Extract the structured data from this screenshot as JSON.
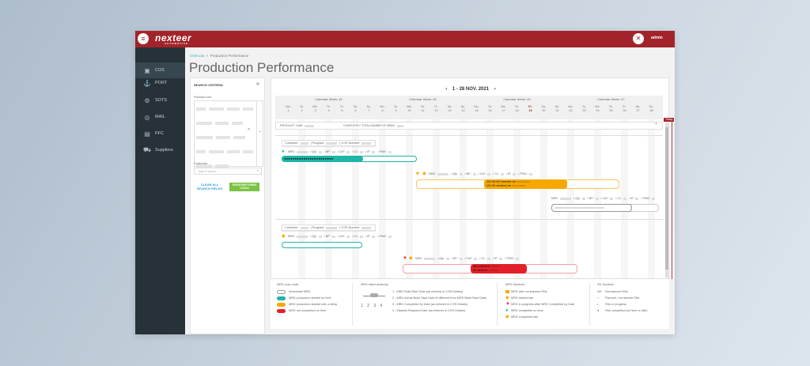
{
  "header": {
    "logo": "nexteer",
    "logo_sub": "AUTOMOTIVE",
    "user": "admin",
    "brand_color": "#a3232a"
  },
  "sidebar": {
    "items": [
      {
        "label": "COS",
        "icon": "cos-icon",
        "active": true
      },
      {
        "label": "PORT",
        "icon": "port-icon"
      },
      {
        "label": "SOTS",
        "icon": "sots-icon"
      },
      {
        "label": "MAIL",
        "icon": "mail-icon"
      },
      {
        "label": "PFC",
        "icon": "pfc-icon"
      },
      {
        "label": "Suppliers",
        "icon": "suppliers-icon"
      }
    ]
  },
  "breadcrumb": {
    "root": "COS List",
    "sep": ">",
    "current": "Production Performance"
  },
  "page_title": "Production Performance",
  "search": {
    "title": "SEARCH CRITERIA",
    "collapse": "«",
    "product_line_label": "Product Line",
    "customer_label": "Customer",
    "customer_placeholder": "Type to search...",
    "clear": "CLEAR ALL SEARCH FIELDS",
    "show": "SHOW MATCHING COSes"
  },
  "gantt": {
    "prev": "‹",
    "next": "›",
    "range": "1 - 28 NOV. 2021",
    "weeks": [
      "Calendar Week: 44",
      "Calendar Week: 45",
      "Calendar Week: 46",
      "Calendar Week: 47"
    ],
    "day_names": [
      "Mo.",
      "Tu.",
      "We.",
      "Th.",
      "Fr.",
      "Sa.",
      "Su."
    ],
    "today_label": "Today",
    "today_day": 19,
    "product_line_label": "PRODUCT LINE:",
    "completed_label": "COMPLETED / TOTAL NUMBER OF MRDS:",
    "customer_label": "Customer:",
    "program_label": "Program:",
    "cos_label": "COS Number:",
    "mrd_fields": [
      "MRD:",
      "Qty:",
      "NP:",
      "CoF:",
      "CL:",
      "IP:",
      "P/NS:"
    ],
    "status_colors": {
      "scheduled": "#ffffff",
      "on_time": "#1fb5a8",
      "delay": "#f7a800",
      "late": "#e3202a"
    },
    "sn_filled": "●●●●●●●●●●●●●●●●●●●●●●●",
    "sn_mixed_1": "NH NH NH  ●●●●●● ●● ○○○○○○○○",
    "sn_mixed_2": "NH NH  ●●●●●● ●● ○○○○○○○○",
    "sn_empty": "○○○○○○○○○○○○○○○○○○○○○○○",
    "sn_red_1": "●●● ●●●●●● ○○○○○○",
    "sn_red_2": "●● ●●●●●● ○○○○○○"
  },
  "legend": {
    "color_code": {
      "title": "MRD color code:",
      "items": [
        "Scheduled MRD",
        "MRD production started on time",
        "MRD production started with a delay",
        "MRD not completed on time"
      ]
    },
    "anatomy": {
      "title": "MRD batch anatomy:",
      "markers": [
        "1",
        "2",
        "3",
        "4"
      ],
      "items": [
        "1 - MRD Build Start Date (as entered in COS Details)",
        "2 - MRD Actual Build Start Date (if different from MRD Build Start Date)",
        "3 - MRD Completed by Date (as entered in COS Details)",
        "4 - Material Required Date (as entered in COS Details)"
      ]
    },
    "mrd_symbols": {
      "title": "MRD Symbols",
      "items": [
        "MRD with not planned SNs",
        "MRD started late",
        "MRD in progress after MRD Completed by Date",
        "MRD completed on time",
        "MRD completed late"
      ]
    },
    "sn_symbols": {
      "title": "SN Symbols",
      "items": [
        {
          "sym": "NH",
          "text": "Not planned SNs"
        },
        {
          "sym": "○",
          "text": "Planned / not started SNs"
        },
        {
          "sym": "◐",
          "text": "SNs in progress"
        },
        {
          "sym": "●",
          "text": "SNs completed (on time or late)"
        }
      ]
    }
  }
}
